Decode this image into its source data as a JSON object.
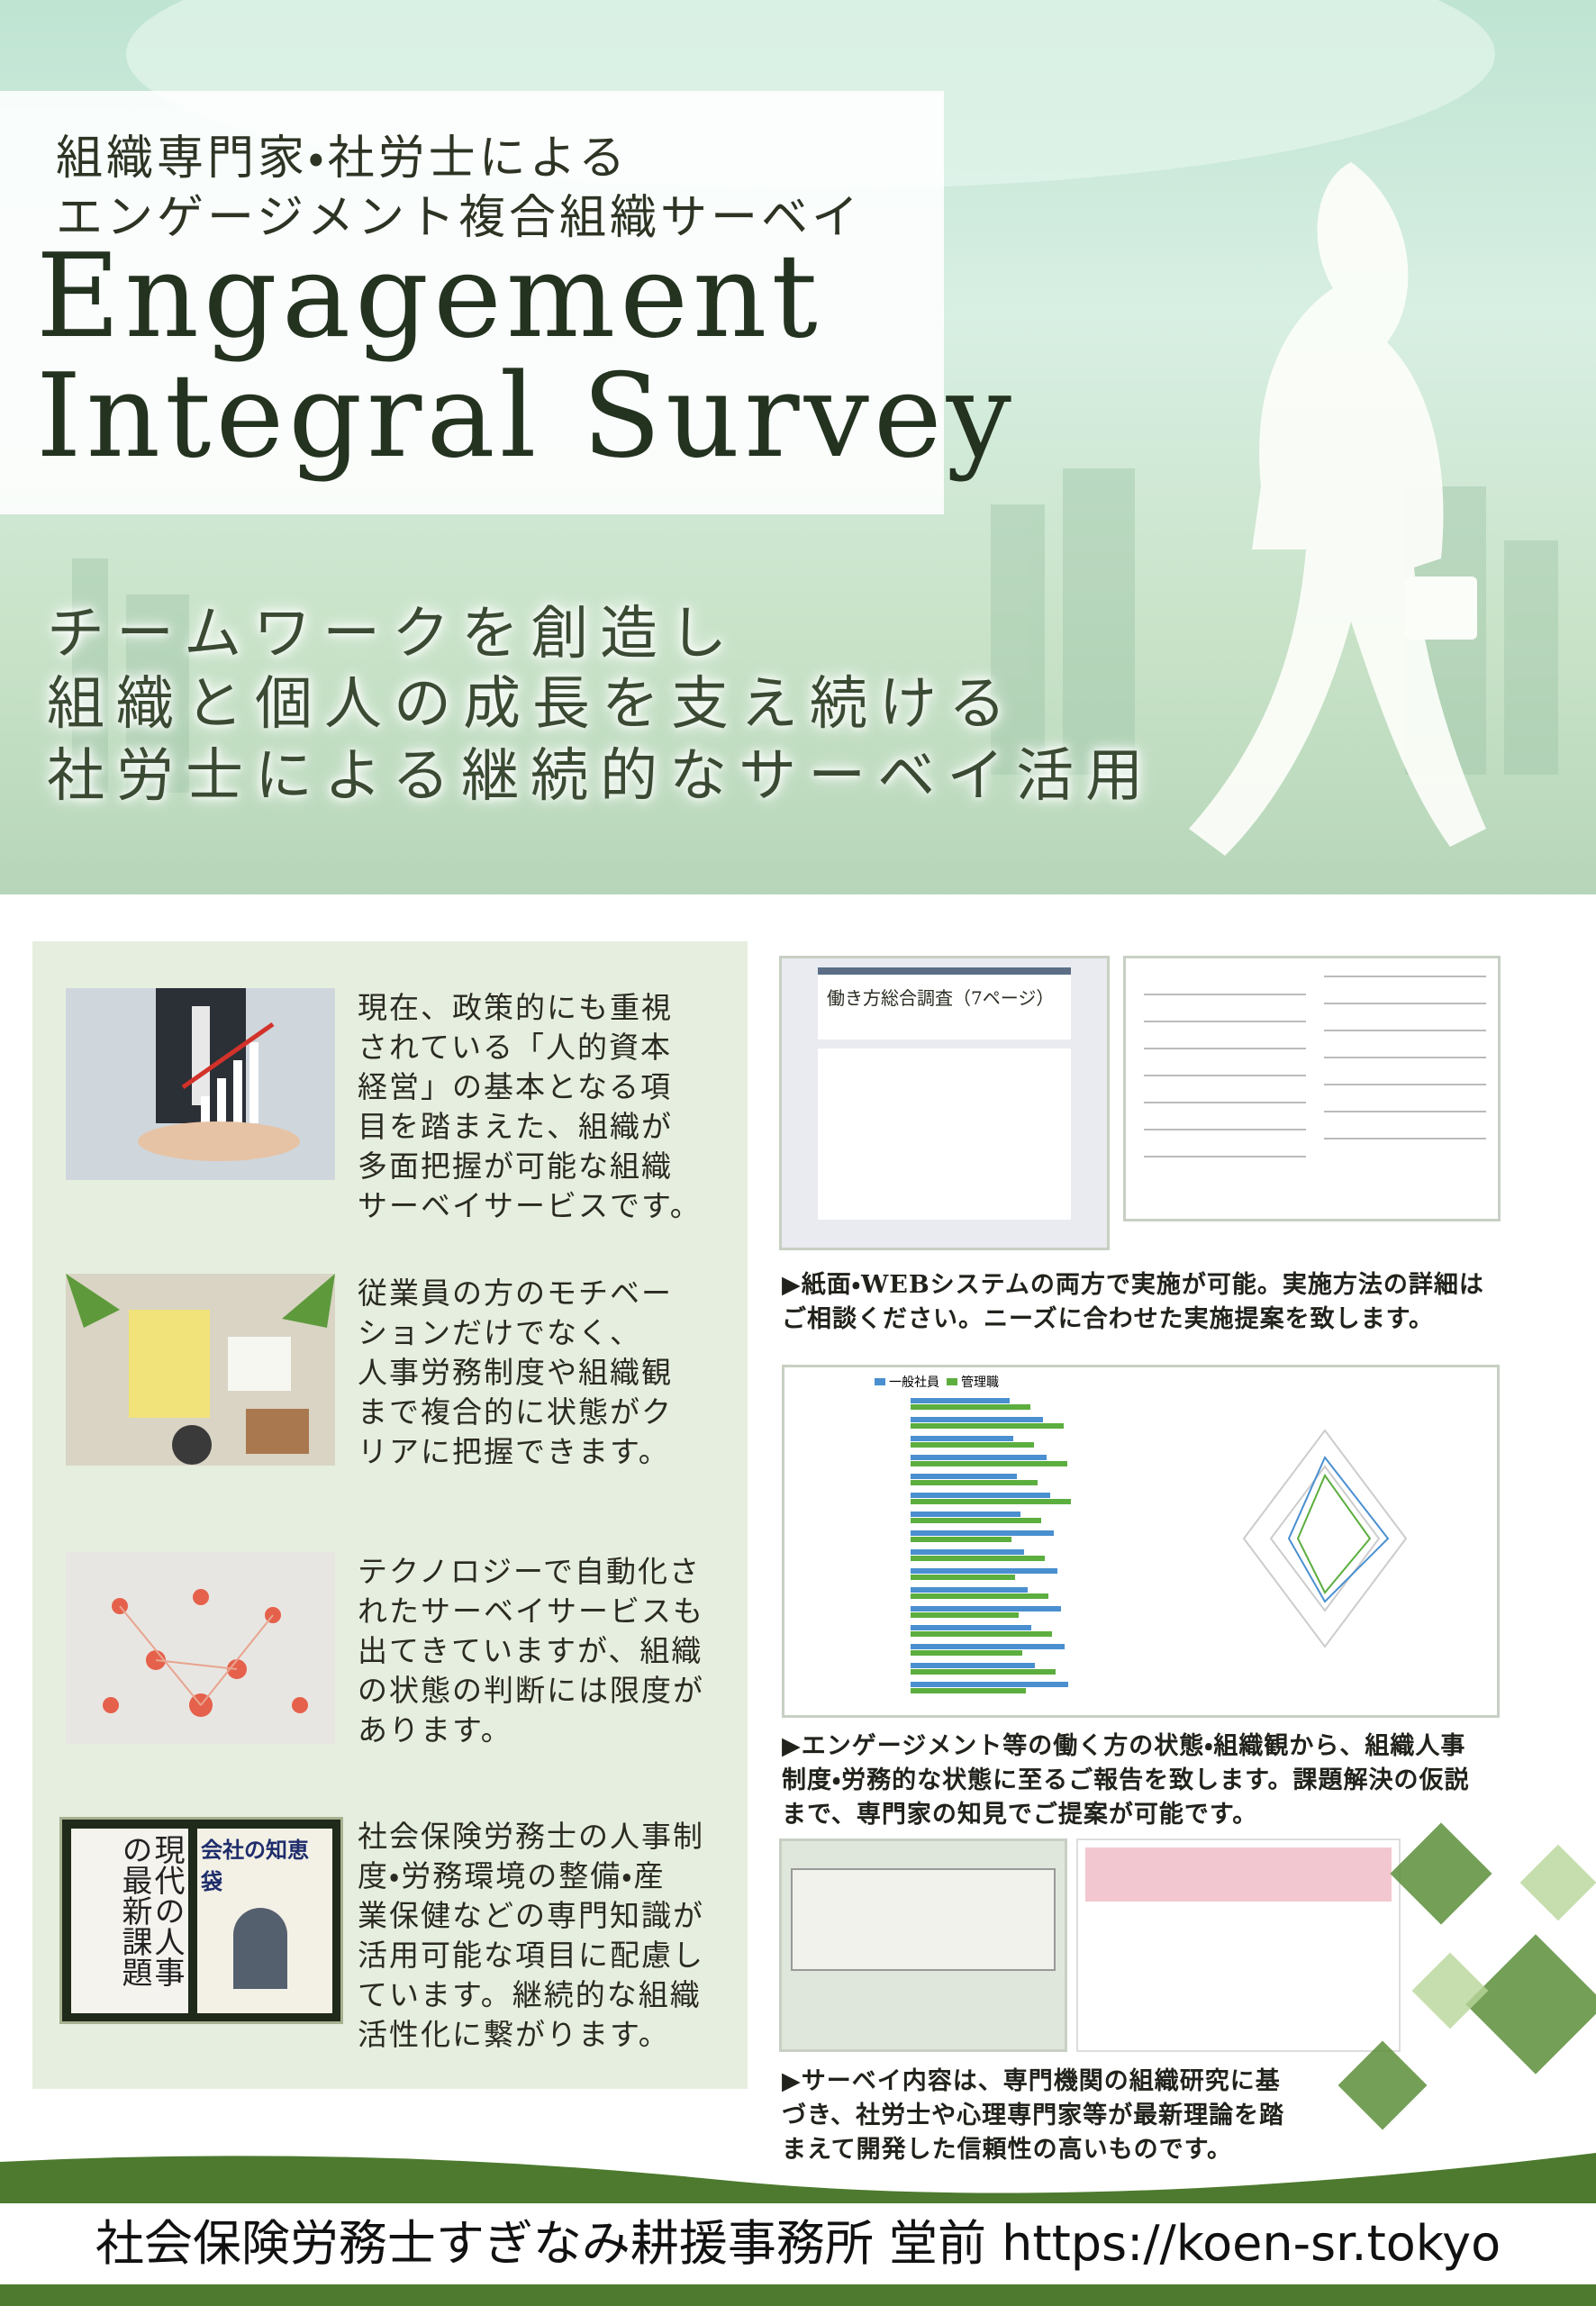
{
  "header": {
    "subtitle": [
      "組織専門家・社労士による",
      "エンゲージメント複合組織サーベイ"
    ],
    "title": [
      "Engagement",
      "Integral Survey"
    ],
    "tagline": [
      "チームワークを創造し",
      "組織と個人の成長を支え続ける",
      "社労士による継続的なサーベイ活用"
    ]
  },
  "features": [
    {
      "lines": [
        "現在、政策的にも重視",
        "されている「人的資本",
        "経営」の基本となる項",
        "目を踏まえた、組織が",
        "多面把握が可能な組織",
        "サーベイサービスです。"
      ]
    },
    {
      "lines": [
        "従業員の方のモチベー",
        "ションだけでなく、",
        "人事労務制度や組織観",
        "まで複合的に状態がク",
        "リアに把握できます。"
      ]
    },
    {
      "lines": [
        "テクノロジーで自動化さ",
        "れたサーベイサービスも",
        "出てきていますが、組織",
        "の状態の判断には限度が",
        "あります。"
      ]
    },
    {
      "lines": [
        "社会保険労務士の人事制",
        "度・労務環境の整備・産",
        "業保健などの専門知識が",
        "活用可能な項目に配慮し",
        "ています。継続的な組織",
        "活性化に繋がります。"
      ]
    }
  ],
  "book": {
    "title": "現代の人事の最新課題",
    "magazine": "会社の知恵袋"
  },
  "screens": {
    "survey_title": "働き方総合調査（7ページ）",
    "legend": [
      "一般社員",
      "管理職"
    ]
  },
  "captions": [
    {
      "lines": [
        "▶紙面・WEBシステムの両方で実施が可能。実施方法の詳細は",
        "ご相談ください。ニーズに合わせた実施提案を致します。"
      ]
    },
    {
      "lines": [
        "▶エンゲージメント等の働く方の状態・組織観から、組織人事",
        "制度・労務的な状態に至るご報告を致します。課題解決の仮説",
        "まで、専門家の知見でご提案が可能です。"
      ]
    },
    {
      "lines": [
        "▶サーベイ内容は、専門機関の組織研究に基",
        "づき、社労士や心理専門家等が最新理論を踏",
        "まえて開発した信頼性の高いものです。"
      ]
    }
  ],
  "footer": {
    "office": "社会保険労務士すぎなみ耕援事務所 堂前",
    "url": "https://koen-sr.tokyo"
  }
}
